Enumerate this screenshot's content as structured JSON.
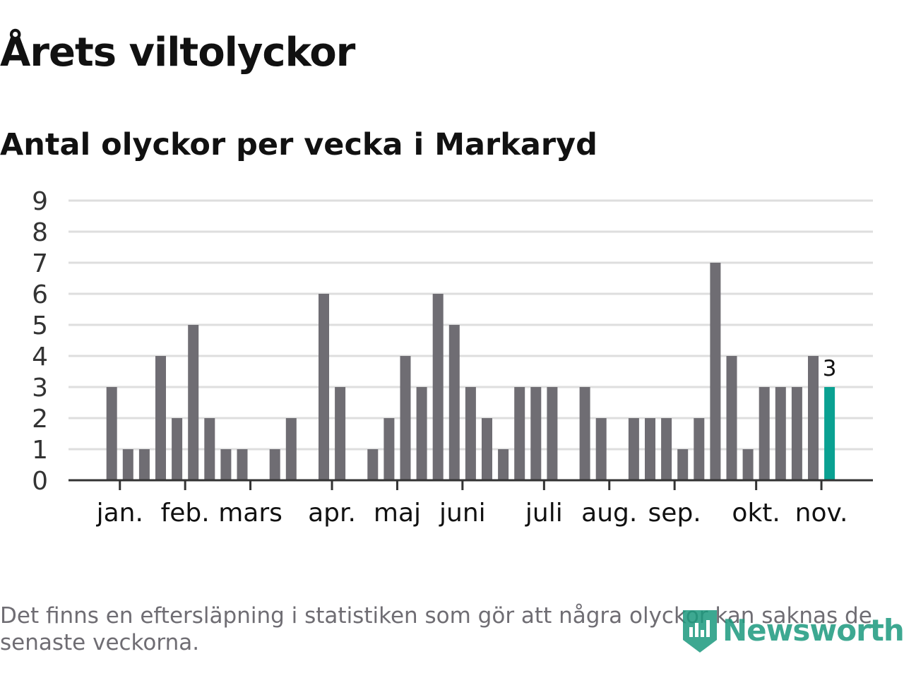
{
  "title": "Årets viltolyckor",
  "subtitle": "Antal olyckor per vecka i Markaryd",
  "footnote": "Det finns en eftersläpning i statistiken som gör att några olyckor kan saknas de senaste veckorna.",
  "brand": "Newsworthy",
  "colors": {
    "bar": "#6f6d73",
    "highlight": "#0aa192",
    "grid": "#dedede",
    "axis": "#333333",
    "text": "#111111",
    "brand": "#1c9a7e"
  },
  "chart_data": {
    "type": "bar",
    "title": "Antal olyckor per vecka i Markaryd",
    "xlabel": "",
    "ylabel": "",
    "ylim": [
      0,
      9
    ],
    "yticks": [
      0,
      1,
      2,
      3,
      4,
      5,
      6,
      7,
      8,
      9
    ],
    "grid": true,
    "weeks": [
      1,
      2,
      3,
      4,
      5,
      6,
      7,
      8,
      9,
      10,
      11,
      12,
      13,
      14,
      15,
      16,
      17,
      18,
      19,
      20,
      21,
      22,
      23,
      24,
      25,
      26,
      27,
      28,
      29,
      30,
      31,
      32,
      33,
      34,
      35,
      36,
      37,
      38,
      39,
      40,
      41,
      42,
      43,
      44,
      45,
      46,
      47
    ],
    "values": [
      0,
      0,
      3,
      1,
      1,
      4,
      2,
      5,
      2,
      1,
      1,
      0,
      1,
      2,
      0,
      6,
      3,
      0,
      1,
      2,
      4,
      3,
      6,
      5,
      3,
      2,
      1,
      3,
      3,
      3,
      0,
      3,
      2,
      0,
      2,
      2,
      2,
      1,
      2,
      7,
      4,
      1,
      3,
      3,
      3,
      4,
      3
    ],
    "highlight_index": 46,
    "highlight_label": "3",
    "month_labels": [
      "jan.",
      "feb.",
      "mars",
      "apr.",
      "maj",
      "juni",
      "juli",
      "aug.",
      "sep.",
      "okt.",
      "nov."
    ],
    "month_tick_weeks": [
      3.5,
      7.5,
      11.5,
      16.5,
      20.5,
      24.5,
      29.5,
      33.5,
      37.5,
      42.5,
      46.5
    ]
  }
}
